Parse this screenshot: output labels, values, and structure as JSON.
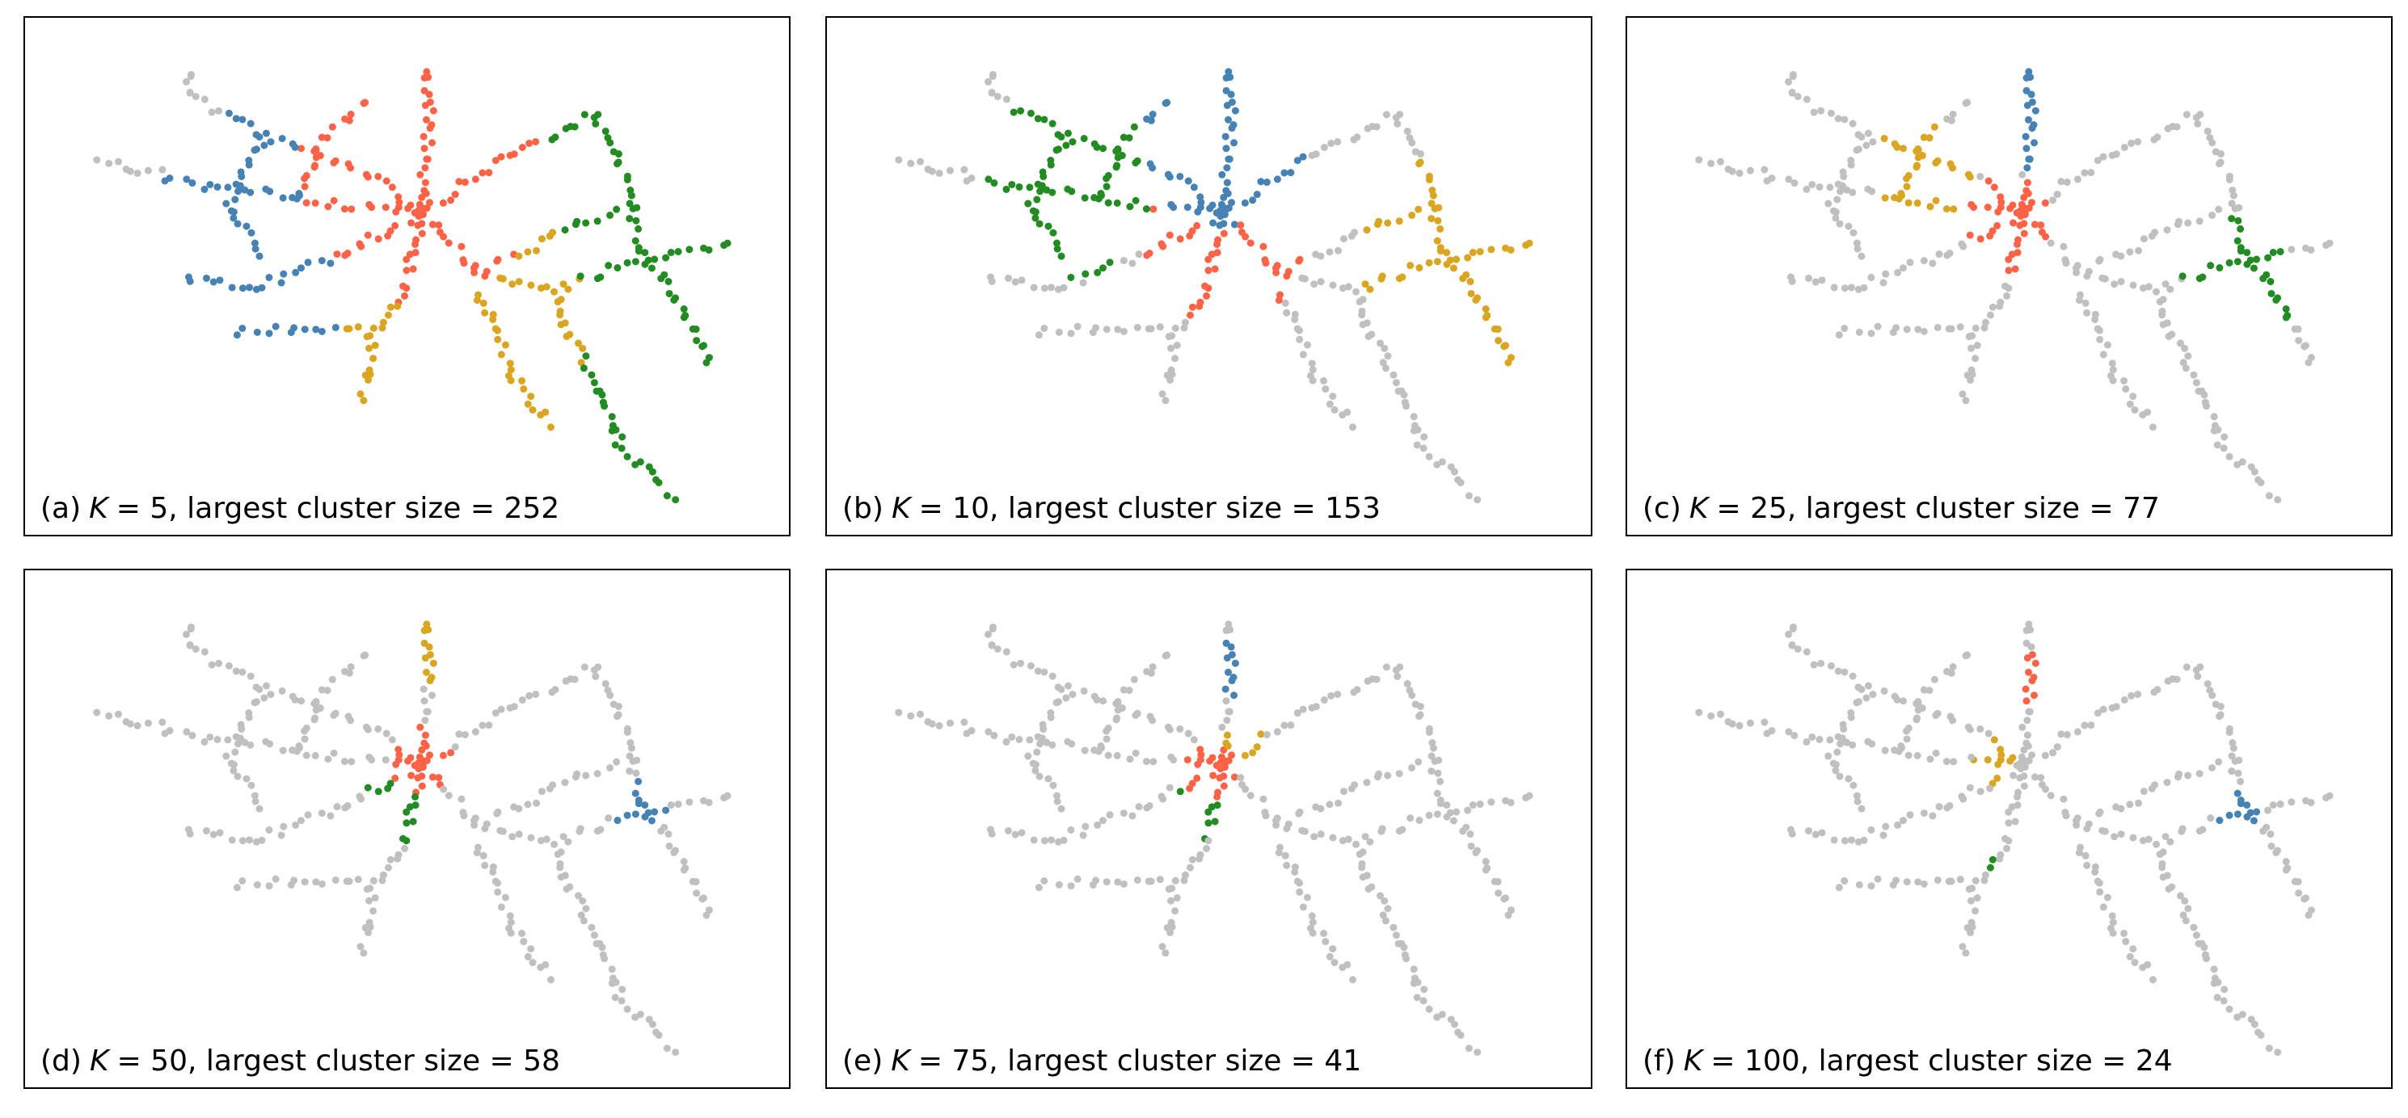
{
  "panels": [
    {
      "label": "(a)",
      "variable": "K",
      "rest": "= 5, largest cluster size = 252"
    },
    {
      "label": "(b)",
      "variable": "K",
      "rest": "= 10, largest cluster size = 153"
    },
    {
      "label": "(c)",
      "variable": "K",
      "rest": "= 25, largest cluster size = 77"
    },
    {
      "label": "(d)",
      "variable": "K",
      "rest": "= 50, largest cluster size = 58"
    },
    {
      "label": "(e)",
      "variable": "K",
      "rest": "= 75, largest cluster size = 41"
    },
    {
      "label": "(f)",
      "variable": "K",
      "rest": "= 100, largest cluster size = 24"
    }
  ]
}
